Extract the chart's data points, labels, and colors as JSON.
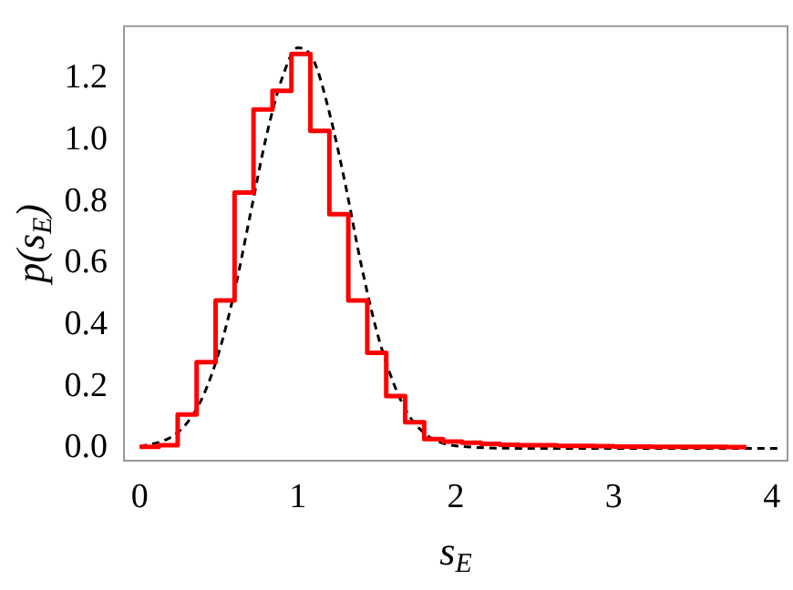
{
  "chart_data": {
    "type": "histogram",
    "xlabel": "s$_{E}$",
    "ylabel": "p(s$_{E}$)",
    "xlim": [
      -0.1,
      4.1
    ],
    "ylim": [
      -0.04,
      1.37
    ],
    "xticks": [
      0,
      1,
      2,
      3,
      4
    ],
    "yticks": [
      {
        "value": 0,
        "label": "0.0"
      },
      {
        "value": 0.2,
        "label": "0.2"
      },
      {
        "value": 0.4,
        "label": "0.4"
      },
      {
        "value": 0.6,
        "label": "0.6"
      },
      {
        "value": 0.8,
        "label": "0.8"
      },
      {
        "value": 1.0,
        "label": "1.0"
      },
      {
        "value": 1.2,
        "label": "1.2"
      }
    ],
    "grid": false,
    "legend": false,
    "series": [
      {
        "type": "histogram",
        "color": "#ff0000",
        "bins": [
          0,
          0.12,
          0.24,
          0.36,
          0.48,
          0.6,
          0.72,
          0.84,
          0.96,
          1.08,
          1.2,
          1.32,
          1.44,
          1.56,
          1.68,
          1.8,
          1.92,
          2.04,
          2.16,
          2.28,
          2.4,
          2.52,
          2.64,
          2.76,
          2.88,
          3.0,
          3.12,
          3.24,
          3.36,
          3.48,
          3.6,
          3.72,
          3.84
        ],
        "values": [
          0.005,
          0.01,
          0.11,
          0.28,
          0.48,
          0.83,
          1.1,
          1.16,
          1.28,
          1.03,
          0.76,
          0.48,
          0.31,
          0.17,
          0.085,
          0.03,
          0.022,
          0.018,
          0.015,
          0.012,
          0.01,
          0.01,
          0.008,
          0.008,
          0.007,
          0.006,
          0.006,
          0.005,
          0.005,
          0.005,
          0.005,
          0.004
        ]
      },
      {
        "type": "line",
        "color": "#000000",
        "line_style": "dashed",
        "marker": "none",
        "x": [
          0,
          0.2,
          0.3,
          0.4,
          0.5,
          0.6,
          0.7,
          0.8,
          0.9,
          1.0,
          1.1,
          1.2,
          1.3,
          1.4,
          1.5,
          1.6,
          1.7,
          1.8,
          1.9,
          2.0,
          2.5,
          3.0,
          3.5,
          4.05
        ],
        "values": [
          0.005,
          0.037,
          0.083,
          0.169,
          0.31,
          0.51,
          0.76,
          1.01,
          1.2,
          1.3,
          1.26,
          1.09,
          0.86,
          0.6,
          0.38,
          0.22,
          0.11,
          0.05,
          0.02,
          0.008,
          0,
          0,
          0,
          0
        ]
      }
    ]
  }
}
